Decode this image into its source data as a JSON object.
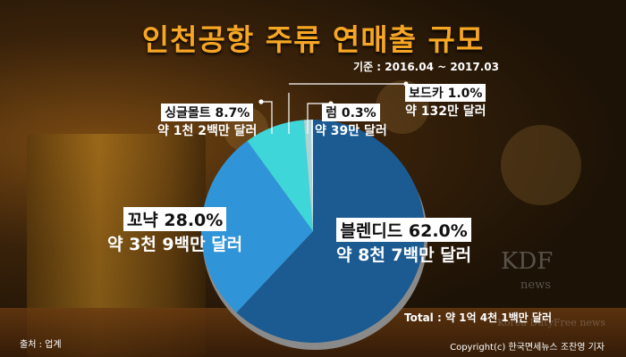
{
  "title": "인천공항 주류 연매출 규모",
  "period": "기준 : 2016.04 ~ 2017.03",
  "chart_data": {
    "type": "pie",
    "title": "인천공항 주류 연매출 규모",
    "slices": [
      {
        "label": "블렌디드",
        "percent_label": "블렌디드 62.0%",
        "value": 62.0,
        "amount": "약 8천 7백만 달러",
        "color": "#1b5b92"
      },
      {
        "label": "꼬냑",
        "percent_label": "꼬냑 28.0%",
        "value": 28.0,
        "amount": "약 3천 9백만 달러",
        "color": "#2f94d8"
      },
      {
        "label": "싱글몰트",
        "percent_label": "싱글몰트 8.7%",
        "value": 8.7,
        "amount": "약 1천 2백만 달러",
        "color": "#3ed6d8"
      },
      {
        "label": "보드카",
        "percent_label": "보드카 1.0%",
        "value": 1.0,
        "amount": "약 132만 달러",
        "color": "#acd3d6"
      },
      {
        "label": "럼",
        "percent_label": "럼 0.3%",
        "value": 0.3,
        "amount": "약 39만 달러",
        "color": "#e6f6fb"
      }
    ],
    "start_angle": "12 o'clock, clockwise"
  },
  "total": "Total : 약 1억 4천 1백만 달러",
  "source": "출처 : 업계",
  "copyright": "Copyright(c) 한국면세뉴스 조찬영 기자",
  "watermark": {
    "logo": "KDF",
    "sub": "news",
    "text": "Korea DutyFree news"
  }
}
